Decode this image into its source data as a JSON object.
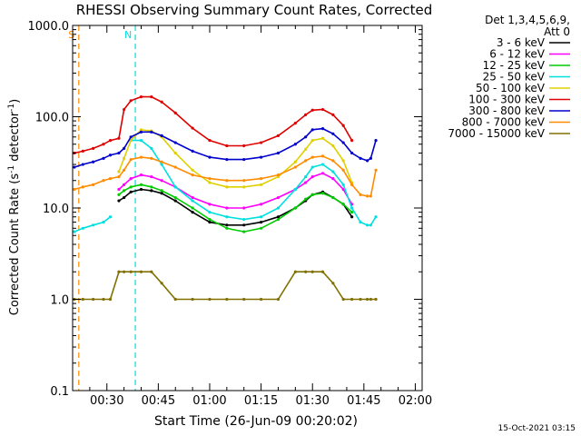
{
  "chart_data": {
    "type": "line",
    "title": "RHESSI Observing Summary Count Rates, Corrected",
    "xlabel": "Start Time (26-Jun-09 00:20:02)",
    "ylabel_main": "Corrected Count Rate (s",
    "ylabel_sup1": "-1",
    "ylabel_mid": " detector",
    "ylabel_sup2": "-1",
    "ylabel_end": ")",
    "yscale": "log",
    "ylim": [
      0.1,
      1000
    ],
    "xlim_minutes": [
      20,
      122
    ],
    "x_ticks": [
      {
        "minute": 30,
        "label": "00:30"
      },
      {
        "minute": 45,
        "label": "00:45"
      },
      {
        "minute": 60,
        "label": "01:00"
      },
      {
        "minute": 75,
        "label": "01:15"
      },
      {
        "minute": 90,
        "label": "01:30"
      },
      {
        "minute": 105,
        "label": "01:45"
      },
      {
        "minute": 120,
        "label": "02:00"
      }
    ],
    "y_ticks": [
      {
        "value": 0.1,
        "label": "0.1"
      },
      {
        "value": 1,
        "label": "1.0"
      },
      {
        "value": 10,
        "label": "10.0"
      },
      {
        "value": 100,
        "label": "100.0"
      },
      {
        "value": 1000,
        "label": "1000.0"
      }
    ],
    "legend_header": [
      "Det 1,3,4,5,6,9,",
      "Att 0"
    ],
    "legend_position": "right",
    "footer_date": "15-Oct-2021 03:15",
    "x_minutes": [
      20.5,
      23,
      26,
      29,
      31,
      33.5,
      35,
      37,
      40,
      43,
      46,
      50,
      55,
      60,
      65,
      70,
      75,
      80,
      85,
      88,
      90,
      93,
      96,
      99,
      101.5,
      104,
      106,
      107,
      108.5
    ],
    "series": [
      {
        "name": "3 - 6 keV",
        "color": "#000000",
        "values": [
          null,
          null,
          null,
          null,
          null,
          12,
          13,
          15,
          16,
          15.5,
          14.5,
          12,
          9,
          7,
          6.5,
          6.5,
          7,
          8,
          10,
          12,
          14,
          15,
          13,
          11,
          8,
          null,
          null,
          null,
          null
        ]
      },
      {
        "name": "6 - 12 keV",
        "color": "#ff00ff",
        "values": [
          null,
          null,
          null,
          null,
          null,
          16,
          18,
          21,
          23,
          22,
          20,
          17,
          13,
          11,
          10,
          10,
          11,
          13,
          16,
          19,
          22,
          24,
          21,
          16,
          11,
          null,
          null,
          null,
          null
        ]
      },
      {
        "name": "12 - 25 keV",
        "color": "#00cc00",
        "values": [
          null,
          null,
          null,
          null,
          null,
          14,
          15.5,
          17,
          18,
          17,
          15.5,
          13,
          10,
          7.5,
          6,
          5.5,
          6,
          7.5,
          10,
          12.5,
          14,
          14.5,
          13,
          11,
          9,
          null,
          null,
          null,
          null
        ]
      },
      {
        "name": "25 - 50 keV",
        "color": "#00e0e0",
        "values": [
          5.5,
          6,
          6.5,
          7,
          8,
          null,
          null,
          55,
          55,
          45,
          30,
          17,
          12,
          9,
          8,
          7.5,
          8,
          10,
          16,
          22,
          28,
          30,
          25,
          18,
          10,
          7,
          6.5,
          6.5,
          8
        ]
      },
      {
        "name": "50 - 100 keV",
        "color": "#e0d000",
        "values": [
          null,
          null,
          null,
          null,
          null,
          25,
          35,
          55,
          72,
          70,
          60,
          40,
          26,
          19,
          17,
          17,
          18,
          22,
          32,
          44,
          55,
          58,
          48,
          33,
          19,
          null,
          null,
          null,
          null
        ]
      },
      {
        "name": "100 - 300 keV",
        "color": "#e00000",
        "values": [
          40,
          42,
          45,
          50,
          55,
          58,
          120,
          150,
          165,
          165,
          145,
          110,
          75,
          55,
          48,
          48,
          52,
          62,
          85,
          105,
          118,
          120,
          105,
          80,
          55,
          null,
          null,
          null,
          null
        ]
      },
      {
        "name": "300 - 800 keV",
        "color": "#0000cc",
        "values": [
          28,
          30,
          32,
          35,
          38,
          40,
          45,
          60,
          68,
          68,
          62,
          52,
          42,
          36,
          34,
          34,
          36,
          40,
          50,
          60,
          72,
          74,
          65,
          52,
          40,
          35,
          33,
          35,
          55
        ]
      },
      {
        "name": "800 - 7000 keV",
        "color": "#ff8c00",
        "values": [
          16,
          17,
          18,
          20,
          21,
          22,
          26,
          34,
          36,
          35,
          32,
          28,
          23,
          21,
          20,
          20,
          21,
          23,
          28,
          33,
          36,
          37,
          33,
          26,
          18,
          14,
          13.5,
          13.5,
          26
        ]
      },
      {
        "name": "7000 - 15000 keV",
        "color": "#807000",
        "values": [
          1,
          1,
          1,
          1,
          1,
          2,
          2,
          2,
          2,
          2,
          1.5,
          1,
          1,
          1,
          1,
          1,
          1,
          1,
          2,
          2,
          2,
          2,
          1.5,
          1,
          1,
          1,
          1,
          1,
          1
        ]
      }
    ],
    "markers": [
      {
        "label": "S",
        "minute": 21.8,
        "color": "#ff8c00"
      },
      {
        "label": "N",
        "minute": 38.3,
        "color": "#00e0e0"
      }
    ]
  }
}
